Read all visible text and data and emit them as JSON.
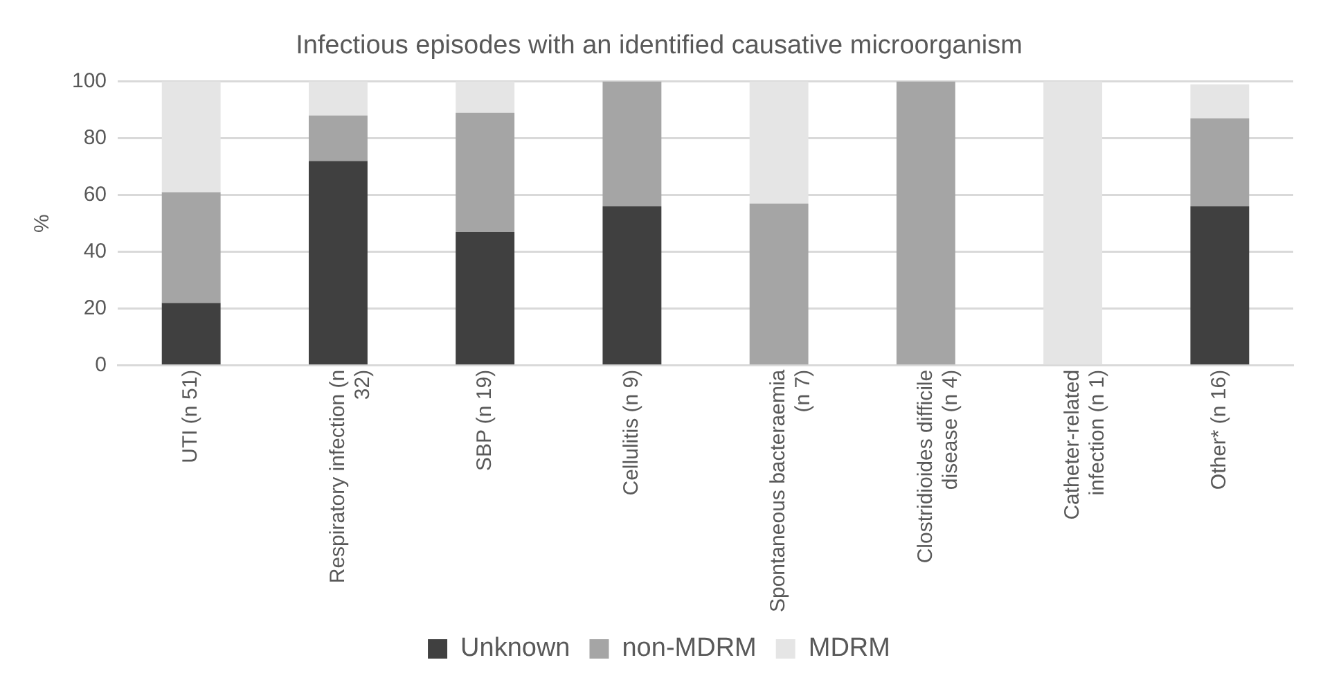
{
  "chart_data": {
    "type": "bar",
    "title": "Infectious episodes with an identified causative microorganism",
    "ylabel": "%",
    "categories": [
      "UTI (n 51)",
      "Respiratory infection (n 32)",
      "SBP (n 19)",
      "Cellulitis (n 9)",
      "Spontaneous bacteraemia (n 7)",
      "Clostridioides difficile disease (n 4)",
      "Catheter-related infection (n 1)",
      "Other* (n 16)"
    ],
    "series": [
      {
        "name": "Unknown",
        "color": "#404040",
        "values": [
          22,
          72,
          47,
          56,
          0,
          0,
          0,
          56
        ]
      },
      {
        "name": "non-MDRM",
        "color": "#a5a5a5",
        "values": [
          39,
          16,
          42,
          44,
          57,
          100,
          0,
          31
        ]
      },
      {
        "name": "MDRM",
        "color": "#e5e5e5",
        "values": [
          39,
          12,
          11,
          0,
          43,
          0,
          100,
          12
        ]
      }
    ],
    "stacked": true,
    "ylim": [
      0,
      100
    ],
    "yticks": [
      0,
      20,
      40,
      60,
      80,
      100
    ],
    "grid": "y",
    "legend": "bottom"
  }
}
